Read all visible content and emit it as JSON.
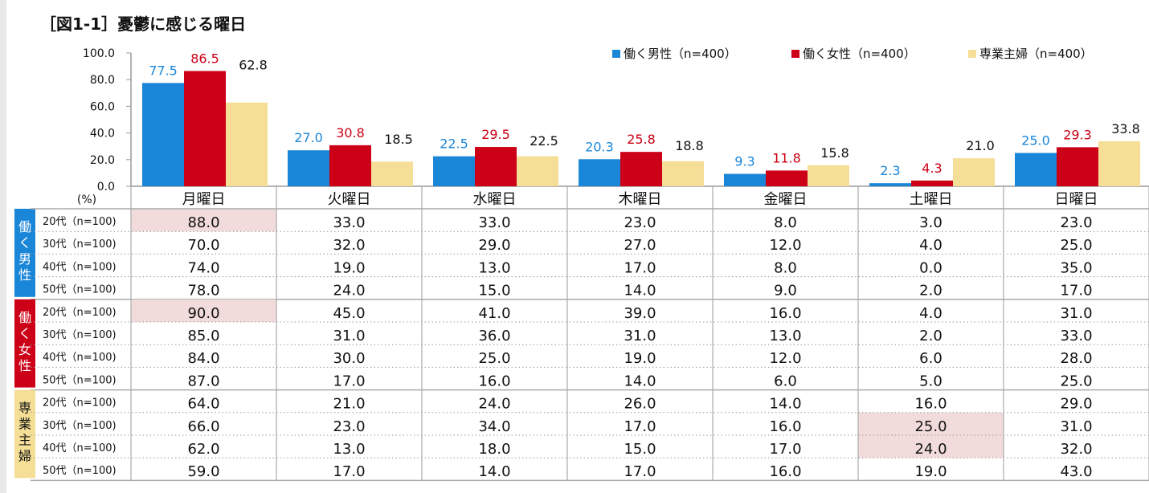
{
  "title": "［図1-1］憂鬱に感じる曜日",
  "chart_data": {
    "type": "bar",
    "title": "［図1-1］憂鬱に感じる曜日",
    "unit_label": "(%)",
    "categories": [
      "月曜日",
      "火曜日",
      "水曜日",
      "木曜日",
      "金曜日",
      "土曜日",
      "日曜日"
    ],
    "ylim": [
      0,
      100
    ],
    "yticks": [
      "0.0",
      "20.0",
      "40.0",
      "60.0",
      "80.0",
      "100.0"
    ],
    "legend_position": "top-right",
    "series": [
      {
        "name": "働く男性（n=400）",
        "color": "#1a86d8",
        "values": [
          77.5,
          27.0,
          22.5,
          20.3,
          9.3,
          2.3,
          25.0
        ],
        "labels": [
          "77.5",
          "27.0",
          "22.5",
          "20.3",
          "9.3",
          "2.3",
          "25.0"
        ]
      },
      {
        "name": "働く女性（n=400）",
        "color": "#cc0016",
        "values": [
          86.5,
          30.8,
          29.5,
          25.8,
          11.8,
          4.3,
          29.3
        ],
        "labels": [
          "86.5",
          "30.8",
          "29.5",
          "25.8",
          "11.8",
          "4.3",
          "29.3"
        ]
      },
      {
        "name": "専業主婦（n=400）",
        "color": "#f5de96",
        "label_color": "#111111",
        "values": [
          62.8,
          18.5,
          22.5,
          18.8,
          15.8,
          21.0,
          33.8
        ],
        "labels": [
          "62.8",
          "18.5",
          "22.5",
          "18.8",
          "15.8",
          "21.0",
          "33.8"
        ]
      }
    ],
    "table": {
      "highlight_color": "#f2dcdb",
      "groups": [
        {
          "name": "働く男性",
          "chars": [
            "働",
            "く",
            "男",
            "性"
          ],
          "color": "#1a86d8",
          "text_color": "#ffffff",
          "rows": [
            {
              "label": "20代（n=100)",
              "values": [
                "88.0",
                "33.0",
                "33.0",
                "23.0",
                "8.0",
                "3.0",
                "23.0"
              ],
              "highlight": [
                0
              ]
            },
            {
              "label": "30代（n=100)",
              "values": [
                "70.0",
                "32.0",
                "29.0",
                "27.0",
                "12.0",
                "4.0",
                "25.0"
              ],
              "highlight": []
            },
            {
              "label": "40代（n=100)",
              "values": [
                "74.0",
                "19.0",
                "13.0",
                "17.0",
                "8.0",
                "0.0",
                "35.0"
              ],
              "highlight": []
            },
            {
              "label": "50代（n=100)",
              "values": [
                "78.0",
                "24.0",
                "15.0",
                "14.0",
                "9.0",
                "2.0",
                "17.0"
              ],
              "highlight": []
            }
          ]
        },
        {
          "name": "働く女性",
          "chars": [
            "働",
            "く",
            "女",
            "性"
          ],
          "color": "#cc0016",
          "text_color": "#ffffff",
          "rows": [
            {
              "label": "20代（n=100)",
              "values": [
                "90.0",
                "45.0",
                "41.0",
                "39.0",
                "16.0",
                "4.0",
                "31.0"
              ],
              "highlight": [
                0
              ]
            },
            {
              "label": "30代（n=100)",
              "values": [
                "85.0",
                "31.0",
                "36.0",
                "31.0",
                "13.0",
                "2.0",
                "33.0"
              ],
              "highlight": []
            },
            {
              "label": "40代（n=100)",
              "values": [
                "84.0",
                "30.0",
                "25.0",
                "19.0",
                "12.0",
                "6.0",
                "28.0"
              ],
              "highlight": []
            },
            {
              "label": "50代（n=100)",
              "values": [
                "87.0",
                "17.0",
                "16.0",
                "14.0",
                "6.0",
                "5.0",
                "25.0"
              ],
              "highlight": []
            }
          ]
        },
        {
          "name": "専業主婦",
          "chars": [
            "専",
            "業",
            "主",
            "婦"
          ],
          "color": "#f5de96",
          "text_color": "#111111",
          "rows": [
            {
              "label": "20代（n=100)",
              "values": [
                "64.0",
                "21.0",
                "24.0",
                "26.0",
                "14.0",
                "16.0",
                "29.0"
              ],
              "highlight": []
            },
            {
              "label": "30代（n=100)",
              "values": [
                "66.0",
                "23.0",
                "34.0",
                "17.0",
                "16.0",
                "25.0",
                "31.0"
              ],
              "highlight": [
                5
              ]
            },
            {
              "label": "40代（n=100)",
              "values": [
                "62.0",
                "13.0",
                "18.0",
                "15.0",
                "17.0",
                "24.0",
                "32.0"
              ],
              "highlight": [
                5
              ]
            },
            {
              "label": "50代（n=100)",
              "values": [
                "59.0",
                "17.0",
                "14.0",
                "17.0",
                "16.0",
                "19.0",
                "43.0"
              ],
              "highlight": []
            }
          ]
        }
      ]
    }
  }
}
